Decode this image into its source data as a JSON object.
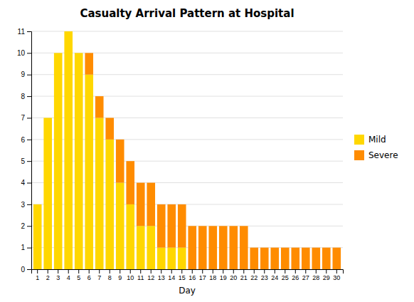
{
  "chart_data": {
    "type": "bar",
    "title": "Casualty Arrival Pattern at Hospital",
    "xlabel": "Day",
    "categories": [
      "1",
      "2",
      "3",
      "4",
      "5",
      "6",
      "7",
      "8",
      "9",
      "10",
      "11",
      "12",
      "13",
      "14",
      "15",
      "16",
      "17",
      "18",
      "19",
      "20",
      "21",
      "22",
      "23",
      "24",
      "25",
      "26",
      "27",
      "28",
      "29",
      "30"
    ],
    "series": [
      {
        "name": "Mild",
        "color": "#FFD700",
        "values": [
          3,
          7,
          10,
          11,
          10,
          9,
          7,
          6,
          4,
          3,
          2,
          2,
          1,
          1,
          1,
          0,
          0,
          0,
          0,
          0,
          0,
          0,
          0,
          0,
          0,
          0,
          0,
          0,
          0,
          0
        ]
      },
      {
        "name": "Severe",
        "color": "#FF8C00",
        "values": [
          0,
          0,
          0,
          0,
          0,
          1,
          1,
          1,
          2,
          2,
          2,
          2,
          2,
          2,
          2,
          2,
          2,
          2,
          2,
          2,
          2,
          1,
          1,
          1,
          1,
          1,
          1,
          1,
          1,
          1
        ]
      }
    ],
    "stacked": true,
    "ylim": [
      0,
      11
    ],
    "yticks": [
      0,
      1,
      2,
      3,
      4,
      5,
      6,
      7,
      8,
      9,
      10,
      11
    ],
    "grid": true,
    "legend": "right"
  }
}
